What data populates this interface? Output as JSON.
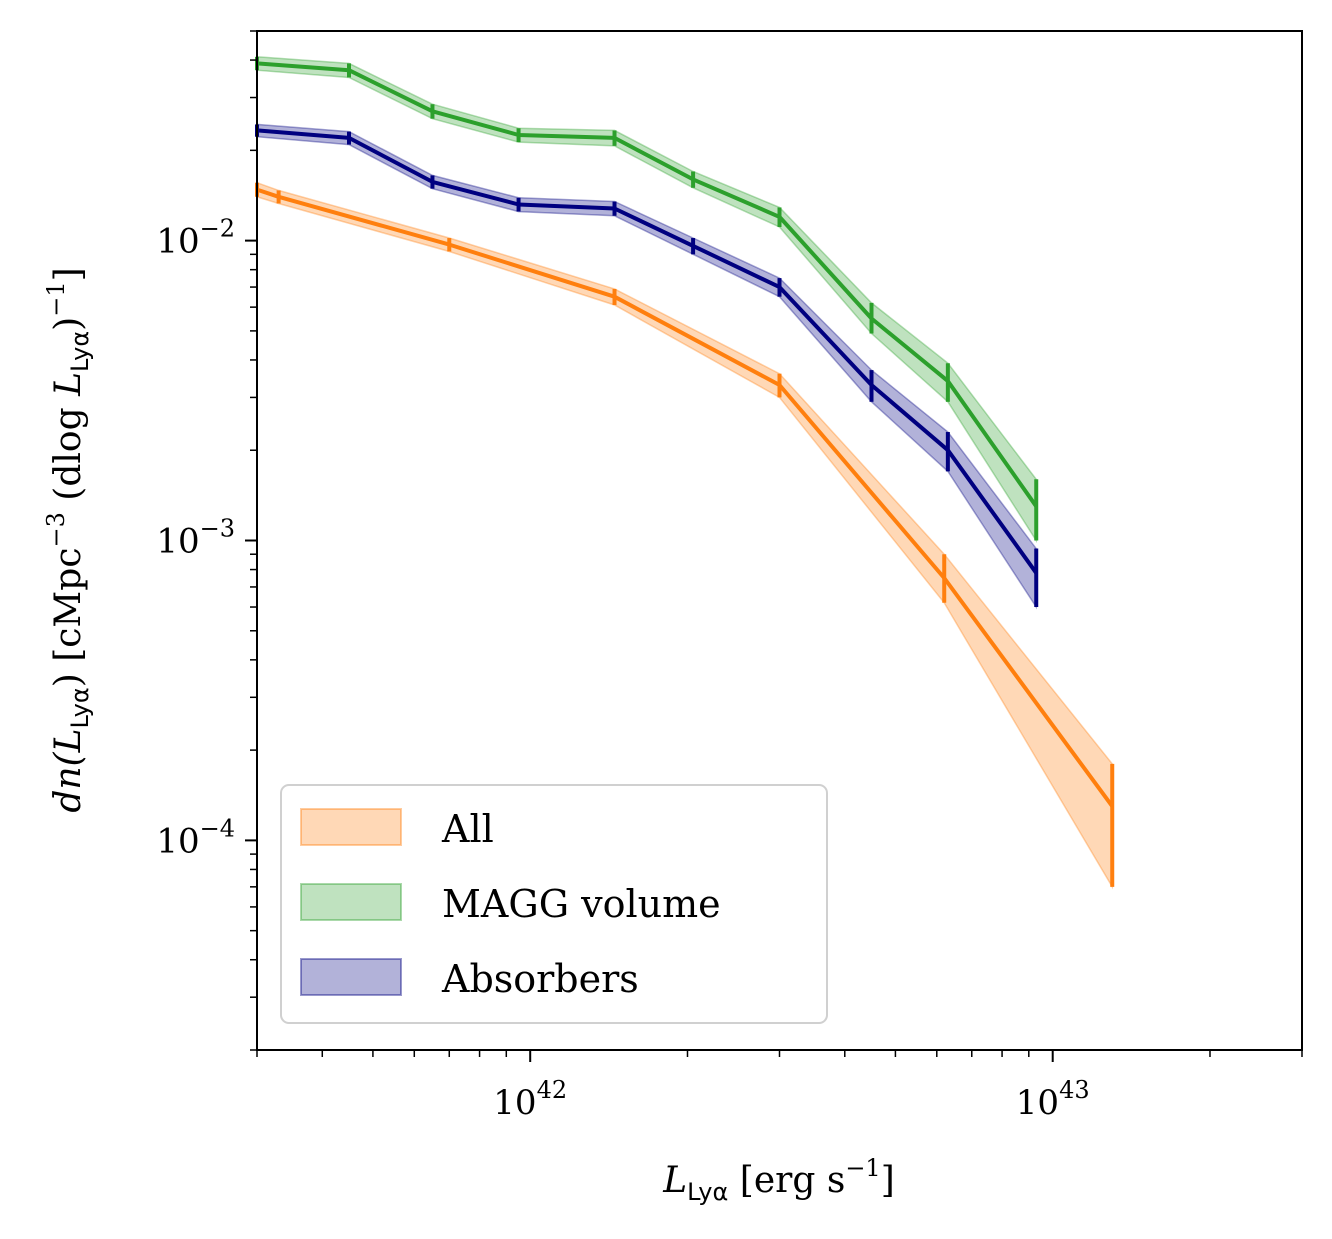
{
  "chart_data": {
    "type": "line",
    "xscale": "log",
    "yscale": "log",
    "xlim": [
      3e+41,
      3e+42,
      3e+43
    ],
    "ylim": [
      2e-05,
      0.05
    ],
    "xlim_note": "",
    "x_range": [
      3e+41,
      3e+43
    ],
    "y_range": [
      2e-05,
      0.05
    ],
    "x_ticks": [
      {
        "value": 1e+42,
        "base": "10",
        "exp": "42"
      },
      {
        "value": 1e+43,
        "base": "10",
        "exp": "43"
      }
    ],
    "y_ticks": [
      {
        "value": 0.0001,
        "base": "10",
        "exp": "−4"
      },
      {
        "value": 0.001,
        "base": "10",
        "exp": "−3"
      },
      {
        "value": 0.01,
        "base": "10",
        "exp": "−2"
      }
    ],
    "xlabel": {
      "main": "L",
      "sub": "Lyα",
      "rest": " [erg s",
      "sup": "−1",
      "end": "]"
    },
    "ylabel": {
      "d": "dn(",
      "L": "L",
      "sub": "Lyα",
      "mid": ") [cMpc",
      "sup1": "−3",
      "mid2": " (dlog ",
      "L2": "L",
      "sub2": "Lyα",
      "end": ")",
      "sup2": "−1",
      "close": "]"
    },
    "legend": {
      "position": "lower-left"
    },
    "grid": false,
    "series": [
      {
        "name": "All",
        "color": "#ff7f0e",
        "x": [
          3e+41,
          3.3e+41,
          7e+41,
          1.45e+42,
          3e+42,
          6.2e+42,
          1.3e+43
        ],
        "y": [
          0.0148,
          0.014,
          0.0097,
          0.0065,
          0.0033,
          0.00075,
          0.00013
        ],
        "y_lo": [
          0.014,
          0.0133,
          0.0092,
          0.0061,
          0.003,
          0.00062,
          7e-05
        ],
        "y_hi": [
          0.0156,
          0.0147,
          0.0102,
          0.0069,
          0.0036,
          0.0009,
          0.00018
        ]
      },
      {
        "name": "MAGG volume",
        "color": "#2ca02c",
        "x": [
          3e+41,
          4.5e+41,
          6.5e+41,
          9.5e+41,
          1.45e+42,
          2.05e+42,
          3e+42,
          4.5e+42,
          6.3e+42,
          9.3e+42
        ],
        "y": [
          0.039,
          0.037,
          0.027,
          0.0225,
          0.022,
          0.016,
          0.012,
          0.0055,
          0.0034,
          0.0013
        ],
        "y_lo": [
          0.037,
          0.035,
          0.0255,
          0.0213,
          0.0207,
          0.015,
          0.0111,
          0.0049,
          0.0029,
          0.001
        ],
        "y_hi": [
          0.041,
          0.039,
          0.0285,
          0.0237,
          0.0233,
          0.017,
          0.0129,
          0.0062,
          0.0039,
          0.0016
        ]
      },
      {
        "name": "Absorbers",
        "color": "#000080",
        "x": [
          3e+41,
          4.5e+41,
          6.5e+41,
          9.5e+41,
          1.45e+42,
          2.05e+42,
          3e+42,
          4.5e+42,
          6.3e+42,
          9.3e+42
        ],
        "y": [
          0.0233,
          0.022,
          0.0157,
          0.0132,
          0.0128,
          0.0096,
          0.007,
          0.0033,
          0.002,
          0.00078
        ],
        "y_lo": [
          0.0222,
          0.0209,
          0.0149,
          0.0125,
          0.0121,
          0.009,
          0.0065,
          0.0029,
          0.0017,
          0.0006
        ],
        "y_hi": [
          0.0244,
          0.0231,
          0.0165,
          0.0139,
          0.0135,
          0.0102,
          0.0075,
          0.0037,
          0.0023,
          0.00094
        ]
      }
    ]
  }
}
